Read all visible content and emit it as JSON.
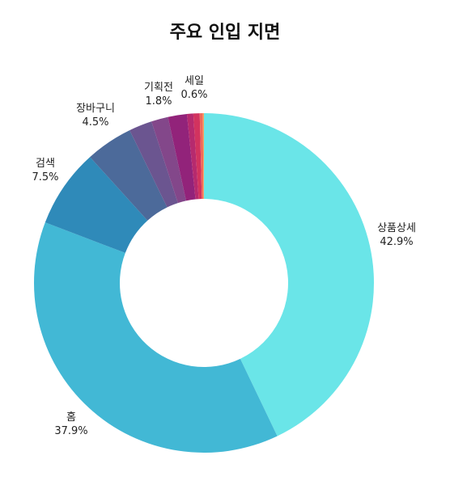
{
  "chart_data": {
    "type": "pie",
    "title": "주요 인입 지면",
    "donut": true,
    "categories": [
      "상품상세",
      "홈",
      "검색",
      "장바구니",
      "",
      "",
      "기획전",
      "",
      "세일",
      "",
      ""
    ],
    "values": [
      42.9,
      37.9,
      7.5,
      4.5,
      2.2,
      1.6,
      1.8,
      0.6,
      0.6,
      0.3,
      0.1
    ],
    "labels_shown": [
      {
        "name": "상품상세",
        "pct": "42.9%"
      },
      {
        "name": "홈",
        "pct": "37.9%"
      },
      {
        "name": "검색",
        "pct": "7.5%"
      },
      {
        "name": "장바구니",
        "pct": "4.5%"
      },
      {
        "name": "기획전",
        "pct": "1.8%"
      },
      {
        "name": "세일",
        "pct": "0.6%"
      }
    ],
    "colors": [
      "#6ae5e8",
      "#42b8d5",
      "#2f8ab9",
      "#4c6a9a",
      "#6b5590",
      "#83478a",
      "#92237a",
      "#b62a6e",
      "#d2335f",
      "#f06a5a",
      "#f5a45a"
    ]
  }
}
